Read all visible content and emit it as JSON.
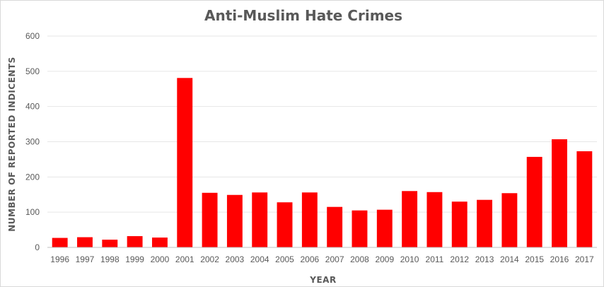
{
  "chart_data": {
    "type": "bar",
    "title": "Anti-Muslim Hate Crimes",
    "xlabel": "YEAR",
    "ylabel": "NUMBER OF REPORTED INDICENTS",
    "ylim": [
      0,
      600
    ],
    "yticks": [
      0,
      100,
      200,
      300,
      400,
      500,
      600
    ],
    "grid": true,
    "legend": "none",
    "bar_color": "#ff0000",
    "categories": [
      "1996",
      "1997",
      "1998",
      "1999",
      "2000",
      "2001",
      "2002",
      "2003",
      "2004",
      "2005",
      "2006",
      "2007",
      "2008",
      "2009",
      "2010",
      "2011",
      "2012",
      "2013",
      "2014",
      "2015",
      "2016",
      "2017"
    ],
    "values": [
      27,
      29,
      22,
      32,
      28,
      481,
      155,
      149,
      156,
      128,
      156,
      115,
      105,
      107,
      160,
      157,
      130,
      135,
      154,
      257,
      307,
      273
    ]
  }
}
